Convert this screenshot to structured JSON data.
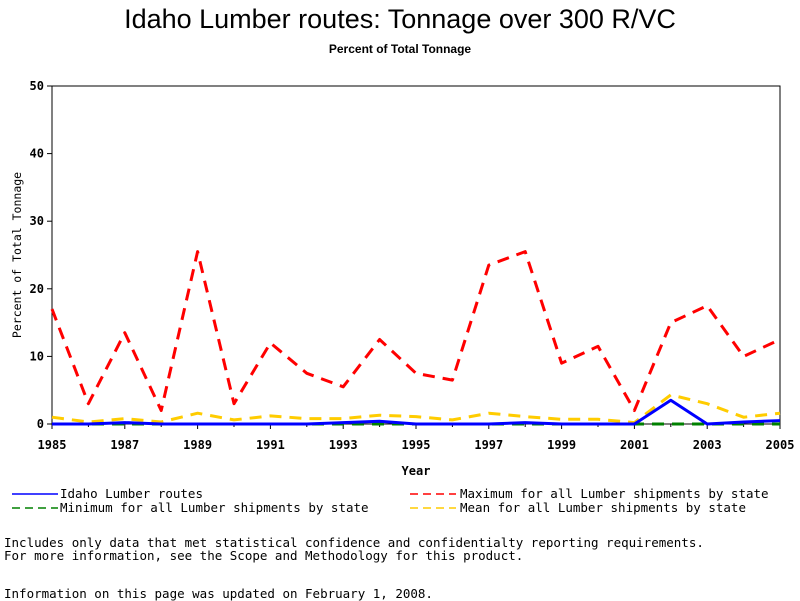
{
  "chart_data": {
    "type": "line",
    "title": "Idaho Lumber routes: Tonnage over 300 R/VC",
    "subtitle": "Percent of Total Tonnage",
    "xlabel": "Year",
    "ylabel": "Percent of Total Tonnage",
    "xlim": [
      1985,
      2005
    ],
    "ylim": [
      0,
      50
    ],
    "xticks": [
      1985,
      1987,
      1989,
      1991,
      1993,
      1995,
      1997,
      1999,
      2001,
      2003,
      2005
    ],
    "yticks": [
      0,
      10,
      20,
      30,
      40,
      50
    ],
    "grid": false,
    "legend_position": "bottom",
    "x": [
      1985,
      1986,
      1987,
      1988,
      1989,
      1990,
      1991,
      1992,
      1993,
      1994,
      1995,
      1996,
      1997,
      1998,
      1999,
      2000,
      2001,
      2002,
      2003,
      2004,
      2005
    ],
    "series": [
      {
        "name": "Idaho Lumber routes",
        "color": "#0000ff",
        "style": "solid",
        "values": [
          0,
          0,
          0.2,
          0,
          0,
          0,
          0,
          0,
          0.2,
          0.4,
          0,
          0,
          0,
          0.2,
          0,
          0,
          0,
          3.5,
          0,
          0.3,
          0.5
        ]
      },
      {
        "name": "Maximum for all Lumber shipments by state",
        "color": "#ff0000",
        "style": "dashed",
        "values": [
          17,
          3,
          13.5,
          2,
          25.5,
          3,
          12,
          7.5,
          5.5,
          12.5,
          7.5,
          6.5,
          23.5,
          25.5,
          9,
          11.5,
          2,
          15,
          17.5,
          10,
          12.5
        ]
      },
      {
        "name": "Minimum for all Lumber shipments by state",
        "color": "#008000",
        "style": "dashed",
        "values": [
          0,
          0,
          0,
          0,
          0,
          0,
          0,
          0,
          0,
          0,
          0,
          0,
          0,
          0,
          0,
          0,
          0,
          0,
          0,
          0,
          0
        ]
      },
      {
        "name": "Mean for all Lumber shipments by state",
        "color": "#ffcc00",
        "style": "dashed",
        "values": [
          1,
          0.3,
          0.8,
          0.3,
          1.6,
          0.6,
          1.2,
          0.8,
          0.8,
          1.3,
          1.1,
          0.6,
          1.6,
          1.1,
          0.7,
          0.7,
          0.2,
          4.3,
          3,
          1,
          1.6
        ]
      }
    ]
  },
  "legend": {
    "blue": "Idaho Lumber routes",
    "red": "Maximum for all Lumber shipments by state",
    "green": "Minimum for all Lumber shipments by state",
    "yellow": "Mean for all Lumber shipments by state"
  },
  "notes": {
    "line1": "Includes only data that met statistical confidence and confidentialty reporting requirements.",
    "line2": "For more information, see the Scope and Methodology for this product.",
    "updated": "Information on this page was updated on February 1, 2008."
  }
}
